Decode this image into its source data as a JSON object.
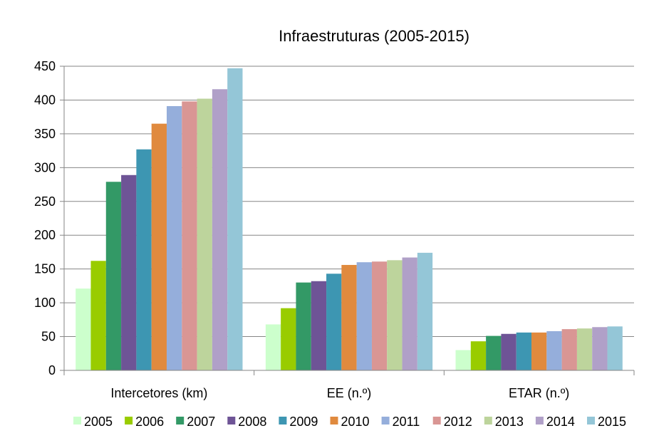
{
  "chart_data": {
    "type": "bar",
    "title": "Infraestruturas (2005-2015)",
    "xlabel": "",
    "ylabel": "",
    "ylim": [
      0,
      450
    ],
    "yticks": [
      0,
      50,
      100,
      150,
      200,
      250,
      300,
      350,
      400,
      450
    ],
    "grid": true,
    "legend_position": "bottom",
    "categories": [
      "Intercetores (km)",
      "EE (n.º)",
      "ETAR (n.º)"
    ],
    "series": [
      {
        "name": "2005",
        "color": "#ccffcc",
        "values": [
          121,
          68,
          30
        ]
      },
      {
        "name": "2006",
        "color": "#99cc00",
        "values": [
          162,
          92,
          43
        ]
      },
      {
        "name": "2007",
        "color": "#339966",
        "values": [
          279,
          130,
          51
        ]
      },
      {
        "name": "2008",
        "color": "#6e5496",
        "values": [
          289,
          132,
          54
        ]
      },
      {
        "name": "2009",
        "color": "#3d96b2",
        "values": [
          327,
          143,
          56
        ]
      },
      {
        "name": "2010",
        "color": "#e08a3e",
        "values": [
          365,
          156,
          56
        ]
      },
      {
        "name": "2011",
        "color": "#95aedb",
        "values": [
          391,
          160,
          58
        ]
      },
      {
        "name": "2012",
        "color": "#d99694",
        "values": [
          398,
          161,
          61
        ]
      },
      {
        "name": "2013",
        "color": "#bdd49c",
        "values": [
          402,
          163,
          62
        ]
      },
      {
        "name": "2014",
        "color": "#b0a0c8",
        "values": [
          416,
          167,
          64
        ]
      },
      {
        "name": "2015",
        "color": "#94c6d7",
        "values": [
          447,
          174,
          65
        ]
      }
    ]
  }
}
